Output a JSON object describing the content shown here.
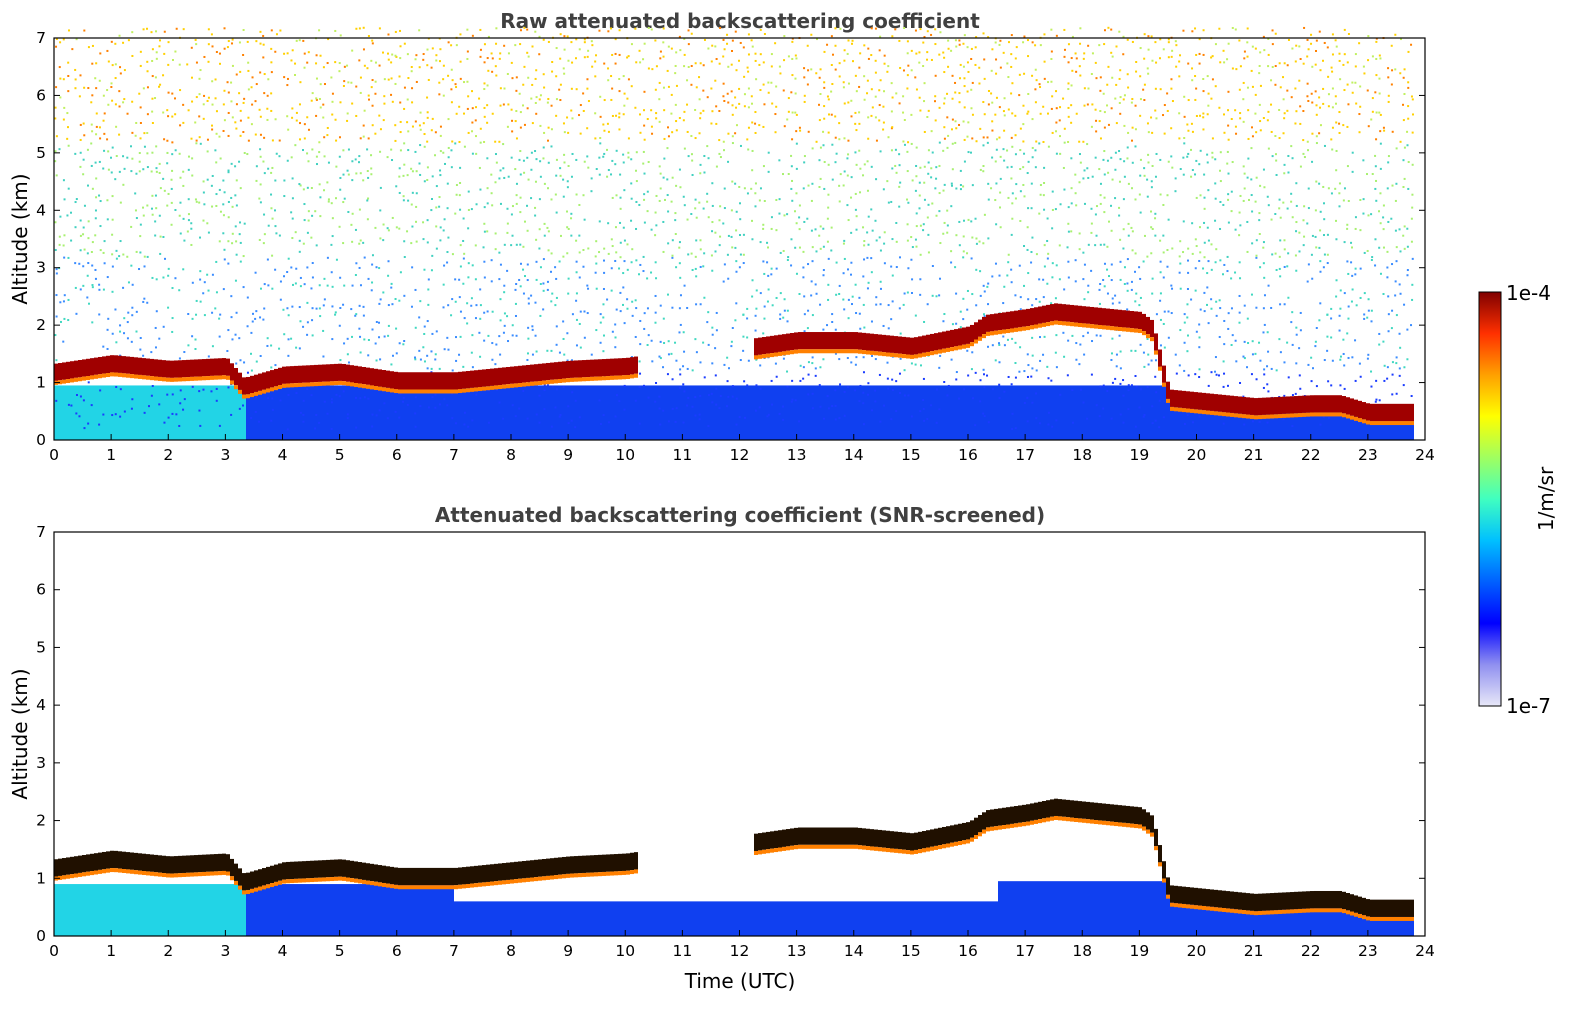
{
  "chart_data": [
    {
      "type": "heatmap",
      "title": "Raw attenuated backscattering coefficient",
      "xlabel": "",
      "ylabel": "Altitude (km)",
      "xlim": [
        0,
        24
      ],
      "ylim": [
        0,
        7
      ],
      "xticks": [
        "0",
        "1",
        "2",
        "3",
        "4",
        "5",
        "6",
        "7",
        "8",
        "9",
        "10",
        "11",
        "12",
        "13",
        "14",
        "15",
        "16",
        "17",
        "18",
        "19",
        "20",
        "21",
        "22",
        "23",
        "24"
      ],
      "yticks": [
        "0",
        "1",
        "2",
        "3",
        "4",
        "5",
        "6",
        "7"
      ],
      "grid": false,
      "data_end_time": 23.8,
      "cloud_layer_km": [
        [
          0,
          1.15
        ],
        [
          1,
          1.3
        ],
        [
          2,
          1.2
        ],
        [
          3,
          1.25
        ],
        [
          3.3,
          0.9
        ],
        [
          4,
          1.1
        ],
        [
          5,
          1.15
        ],
        [
          6,
          1.0
        ],
        [
          7,
          1.0
        ],
        [
          8,
          1.1
        ],
        [
          9,
          1.2
        ],
        [
          10,
          1.25
        ],
        [
          12.3,
          1.6
        ],
        [
          13,
          1.7
        ],
        [
          14,
          1.7
        ],
        [
          15,
          1.6
        ],
        [
          16,
          1.8
        ],
        [
          16.3,
          2.0
        ],
        [
          17,
          2.1
        ],
        [
          17.5,
          2.2
        ],
        [
          18,
          2.15
        ],
        [
          19,
          2.05
        ],
        [
          19.2,
          1.9
        ],
        [
          19.5,
          0.7
        ],
        [
          20,
          0.65
        ],
        [
          21,
          0.55
        ],
        [
          22,
          0.6
        ],
        [
          22.5,
          0.6
        ],
        [
          23,
          0.45
        ],
        [
          23.8,
          0.45
        ]
      ]
    },
    {
      "type": "heatmap",
      "title": "Attenuated backscattering coefficient (SNR-screened)",
      "xlabel": "Time (UTC)",
      "ylabel": "Altitude (km)",
      "xlim": [
        0,
        24
      ],
      "ylim": [
        0,
        7
      ],
      "xticks": [
        "0",
        "1",
        "2",
        "3",
        "4",
        "5",
        "6",
        "7",
        "8",
        "9",
        "10",
        "11",
        "12",
        "13",
        "14",
        "15",
        "16",
        "17",
        "18",
        "19",
        "20",
        "21",
        "22",
        "23",
        "24"
      ],
      "yticks": [
        "0",
        "1",
        "2",
        "3",
        "4",
        "5",
        "6",
        "7"
      ],
      "grid": false,
      "data_end_time": 23.8,
      "cloud_layer_km": [
        [
          0,
          1.15
        ],
        [
          1,
          1.3
        ],
        [
          2,
          1.2
        ],
        [
          3,
          1.25
        ],
        [
          3.3,
          0.9
        ],
        [
          4,
          1.1
        ],
        [
          5,
          1.15
        ],
        [
          6,
          1.0
        ],
        [
          7,
          1.0
        ],
        [
          8,
          1.1
        ],
        [
          9,
          1.2
        ],
        [
          10,
          1.25
        ],
        [
          12.3,
          1.6
        ],
        [
          13,
          1.7
        ],
        [
          14,
          1.7
        ],
        [
          15,
          1.6
        ],
        [
          16,
          1.8
        ],
        [
          16.3,
          2.0
        ],
        [
          17,
          2.1
        ],
        [
          17.5,
          2.2
        ],
        [
          18,
          2.15
        ],
        [
          19,
          2.05
        ],
        [
          19.2,
          1.9
        ],
        [
          19.5,
          0.7
        ],
        [
          20,
          0.65
        ],
        [
          21,
          0.55
        ],
        [
          22,
          0.6
        ],
        [
          22.5,
          0.6
        ],
        [
          23,
          0.45
        ],
        [
          23.8,
          0.45
        ]
      ]
    }
  ],
  "colorbar": {
    "max_label": "1e-4",
    "min_label": "1e-7",
    "unit_label": "1/m/sr",
    "colormap": "jet",
    "colors": [
      "#e8e8f8",
      "#9090f0",
      "#0000ff",
      "#0060ff",
      "#00c0ff",
      "#40ffc0",
      "#a0ff60",
      "#ffff00",
      "#ffa000",
      "#ff3000",
      "#800000"
    ]
  }
}
